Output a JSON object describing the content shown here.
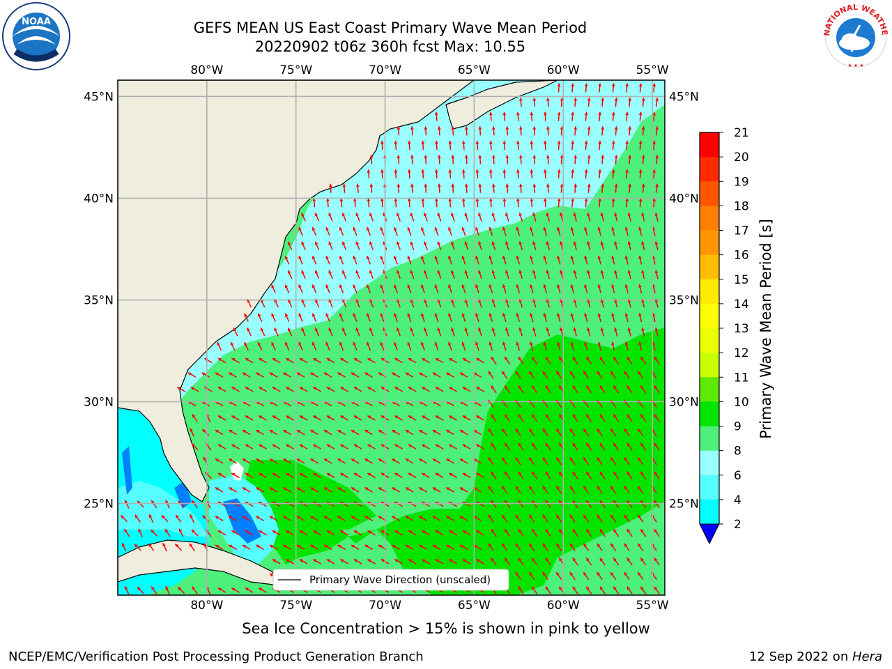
{
  "title": {
    "line1": "GEFS MEAN US East Coast Primary Wave Mean Period",
    "line2": "20220902 t06z 360h fcst   Max: 10.55"
  },
  "map": {
    "lon_labels": [
      "80°W",
      "75°W",
      "70°W",
      "65°W",
      "60°W",
      "55°W"
    ],
    "lat_labels": [
      "45°N",
      "40°N",
      "35°N",
      "30°N",
      "25°N"
    ],
    "lon_values": [
      -80,
      -75,
      -70,
      -65,
      -60,
      -55
    ],
    "lat_values": [
      45,
      40,
      35,
      30,
      25
    ],
    "extent": {
      "lon_min": -85,
      "lon_max": -54.3,
      "lat_min": 20.5,
      "lat_max": 45.8
    },
    "legend_label": "Primary Wave Direction (unscaled)",
    "arrow_color": "#ff0000",
    "land_color": "#efedde",
    "grid_color": "#b0b0b0"
  },
  "colorbar": {
    "label": "Primary Wave Mean Period [s]",
    "ticks": [
      "21",
      "20",
      "19",
      "18",
      "17",
      "16",
      "15",
      "14",
      "13",
      "12",
      "11",
      "10",
      "9",
      "8",
      "6",
      "4",
      "2"
    ],
    "colors": [
      "#ff0000",
      "#ff2a00",
      "#ff5500",
      "#ff7f00",
      "#ff9500",
      "#ffbf00",
      "#ffea00",
      "#ffff00",
      "#eaff00",
      "#c8ff00",
      "#5fe800",
      "#00e400",
      "#4cf07a",
      "#99ffff",
      "#55ffff",
      "#00ffff",
      "#0080ff",
      "#0000ff"
    ]
  },
  "footer": {
    "note": "Sea Ice Concentration > 15% is shown in pink to yellow",
    "credit_left": "NCEP/EMC/Verification Post Processing Product Generation Branch",
    "credit_date": "12 Sep 2022 on ",
    "credit_machine": "Hera"
  },
  "logos": {
    "left": "NOAA",
    "right_text": "NATIONAL WEATHER SERVICE"
  }
}
